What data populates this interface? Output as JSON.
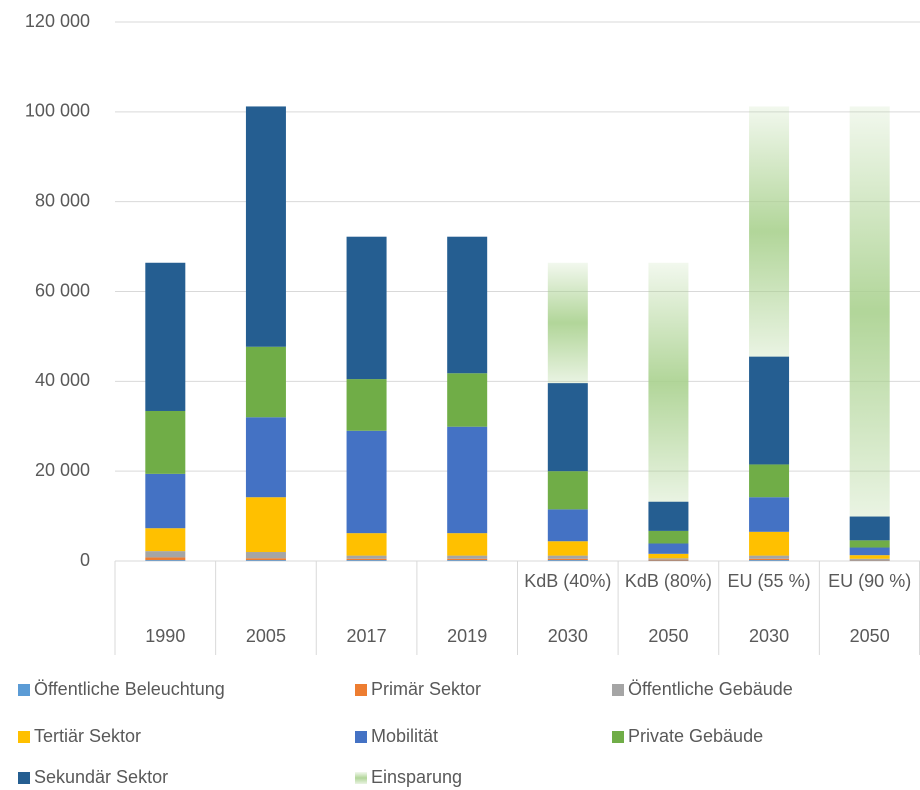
{
  "chart_data": {
    "type": "stacked-bar",
    "categories": [
      "1990",
      "2005",
      "2017",
      "2019",
      "2030",
      "2050",
      "2030",
      "2050"
    ],
    "sublabels": [
      null,
      null,
      null,
      null,
      "KdB (40%)",
      "KdB (80%)",
      "EU (55 %)",
      "EU (90 %)"
    ],
    "series": [
      {
        "name": "Öffentliche Beleuchtung",
        "color": "#5b9bd5",
        "values": [
          200,
          200,
          200,
          200,
          200,
          100,
          200,
          100
        ]
      },
      {
        "name": "Primär Sektor",
        "color": "#ed7d31",
        "values": [
          600,
          400,
          300,
          300,
          300,
          200,
          300,
          100
        ]
      },
      {
        "name": "Öffentliche Gebäude",
        "color": "#a5a5a5",
        "values": [
          1400,
          1400,
          700,
          700,
          700,
          300,
          700,
          300
        ]
      },
      {
        "name": "Tertiär Sektor",
        "color": "#ffc000",
        "values": [
          5100,
          12200,
          5000,
          5000,
          3200,
          1000,
          5300,
          800
        ]
      },
      {
        "name": "Mobilität",
        "color": "#4472c4",
        "values": [
          12100,
          17800,
          22800,
          23700,
          7100,
          2300,
          7700,
          1700
        ]
      },
      {
        "name": "Private Gebäude",
        "color": "#70ad47",
        "values": [
          14000,
          15700,
          11500,
          11900,
          8500,
          2800,
          7300,
          1600
        ]
      },
      {
        "name": "Sekundär Sektor",
        "color": "#255e91",
        "values": [
          33000,
          53500,
          31700,
          30400,
          19600,
          6500,
          24000,
          5300
        ]
      },
      {
        "name": "Einsparung",
        "color": "#a9d18e",
        "gradient": true,
        "values": [
          null,
          null,
          null,
          null,
          26800,
          53200,
          55700,
          91300
        ]
      }
    ],
    "ylim": [
      0,
      120000
    ],
    "yticks": [
      0,
      {
        "value": 20000,
        "label": "20 000"
      },
      {
        "value": 40000,
        "label": "40 000"
      },
      {
        "value": 60000,
        "label": "60 000"
      },
      {
        "value": 80000,
        "label": "80 000"
      },
      {
        "value": 100000,
        "label": "100 000"
      },
      {
        "value": 120000,
        "label": "120 000"
      }
    ],
    "grid": true,
    "legend": "bottom"
  }
}
